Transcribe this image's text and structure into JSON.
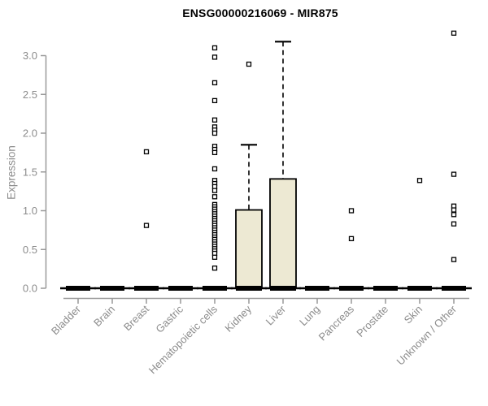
{
  "chart_data": {
    "type": "boxplot",
    "title": "ENSG00000216069 - MIR875",
    "ylabel": "Expression",
    "xlabel": "",
    "ylim": [
      0,
      3.3
    ],
    "grid": false,
    "legend": "none",
    "ytick_values": [
      0.0,
      0.5,
      1.0,
      1.5,
      2.0,
      2.5,
      3.0
    ],
    "ytick_labels": [
      "0.0",
      "0.5",
      "1.0",
      "1.5",
      "2.0",
      "2.5",
      "3.0"
    ],
    "categories": [
      "Bladder",
      "Brain",
      "Breast",
      "Gastric",
      "Hematopoietic cells",
      "Kidney",
      "Liver",
      "Lung",
      "Pancreas",
      "Prostate",
      "Skin",
      "Unknown / Other"
    ],
    "colors": {
      "box_fill": "#ede9d3",
      "box_stroke": "#000000",
      "axis": "#999999",
      "tick_text": "#8c8c8c",
      "title_text": "#000000",
      "outlier_fill": "#ffffff"
    },
    "boxes": [
      {
        "category": "Bladder",
        "q1": 0,
        "median": 0,
        "q3": 0,
        "whisker_low": 0,
        "whisker_high": 0,
        "outliers": []
      },
      {
        "category": "Brain",
        "q1": 0,
        "median": 0,
        "q3": 0,
        "whisker_low": 0,
        "whisker_high": 0,
        "outliers": []
      },
      {
        "category": "Breast",
        "q1": 0,
        "median": 0,
        "q3": 0,
        "whisker_low": 0,
        "whisker_high": 0,
        "outliers": [
          1.76,
          0.81
        ]
      },
      {
        "category": "Gastric",
        "q1": 0,
        "median": 0,
        "q3": 0,
        "whisker_low": 0,
        "whisker_high": 0,
        "outliers": []
      },
      {
        "category": "Hematopoietic cells",
        "q1": 0,
        "median": 0,
        "q3": 0,
        "whisker_low": 0,
        "whisker_high": 0,
        "outliers": [
          3.1,
          2.98,
          2.65,
          2.42,
          2.17,
          2.08,
          2.04,
          2.0,
          1.83,
          1.79,
          1.75,
          1.54,
          1.39,
          1.35,
          1.31,
          1.26,
          1.18,
          1.08,
          1.05,
          1.02,
          0.99,
          0.96,
          0.93,
          0.9,
          0.87,
          0.84,
          0.81,
          0.78,
          0.75,
          0.72,
          0.69,
          0.66,
          0.63,
          0.6,
          0.57,
          0.54,
          0.51,
          0.48,
          0.45,
          0.4,
          0.26
        ]
      },
      {
        "category": "Kidney",
        "q1": 0,
        "median": 0,
        "q3": 1.01,
        "whisker_low": 0,
        "whisker_high": 1.85,
        "outliers": [
          2.89
        ]
      },
      {
        "category": "Liver",
        "q1": 0,
        "median": 0,
        "q3": 1.41,
        "whisker_low": 0,
        "whisker_high": 3.18,
        "outliers": []
      },
      {
        "category": "Lung",
        "q1": 0,
        "median": 0,
        "q3": 0,
        "whisker_low": 0,
        "whisker_high": 0,
        "outliers": []
      },
      {
        "category": "Pancreas",
        "q1": 0,
        "median": 0,
        "q3": 0,
        "whisker_low": 0,
        "whisker_high": 0,
        "outliers": [
          1.0,
          0.64
        ]
      },
      {
        "category": "Prostate",
        "q1": 0,
        "median": 0,
        "q3": 0,
        "whisker_low": 0,
        "whisker_high": 0,
        "outliers": []
      },
      {
        "category": "Skin",
        "q1": 0,
        "median": 0,
        "q3": 0,
        "whisker_low": 0,
        "whisker_high": 0,
        "outliers": [
          1.39
        ]
      },
      {
        "category": "Unknown / Other",
        "q1": 0,
        "median": 0,
        "q3": 0,
        "whisker_low": 0,
        "whisker_high": 0,
        "outliers": [
          3.29,
          1.47,
          1.06,
          1.01,
          0.95,
          0.83,
          0.37
        ]
      }
    ]
  }
}
